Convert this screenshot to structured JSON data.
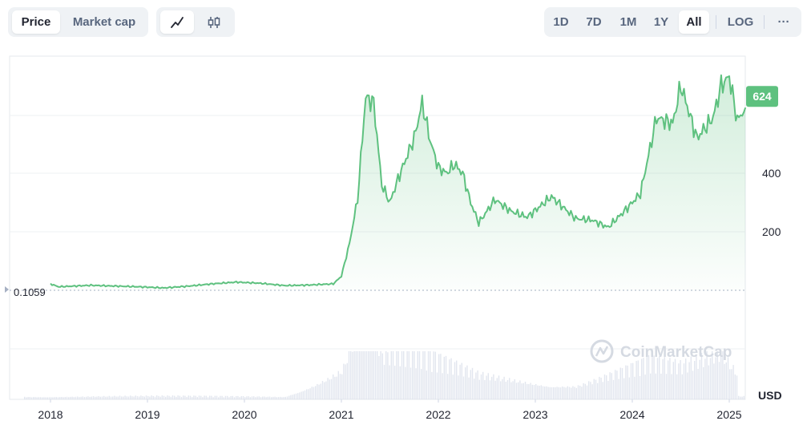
{
  "toolbar": {
    "metric_tabs": [
      {
        "label": "Price",
        "active": true
      },
      {
        "label": "Market cap",
        "active": false
      }
    ],
    "chart_style": [
      {
        "icon": "line-chart-icon",
        "active": true
      },
      {
        "icon": "candlestick-icon",
        "active": false
      }
    ],
    "ranges": [
      {
        "label": "1D",
        "active": false
      },
      {
        "label": "7D",
        "active": false
      },
      {
        "label": "1M",
        "active": false
      },
      {
        "label": "1Y",
        "active": false
      },
      {
        "label": "All",
        "active": true
      }
    ],
    "log_label": "LOG",
    "more_label": "···"
  },
  "watermark": "CoinMarketCap",
  "colors": {
    "line": "#5ec17f",
    "fill_top": "#5ec17f",
    "badge": "#5ec17f",
    "grid": "#eef0f3",
    "axis_text": "#222531",
    "volume": "#cfd6e4"
  },
  "chart_data": {
    "type": "line",
    "title": "",
    "xlabel": "",
    "ylabel": "USD",
    "currency_label": "USD",
    "x_ticks": [
      "2018",
      "2019",
      "2020",
      "2021",
      "2022",
      "2023",
      "2024",
      "2025"
    ],
    "y_ticks": [
      200,
      400
    ],
    "ylim": [
      0,
      800
    ],
    "grid": true,
    "start_marker": {
      "value": 0.1059,
      "label": "0.1059"
    },
    "current_price": {
      "value": 624,
      "label": "624"
    },
    "series": [
      {
        "values": [
          [
            "2018-01",
            22
          ],
          [
            "2018-02",
            12
          ],
          [
            "2018-06",
            17
          ],
          [
            "2018-12",
            12
          ],
          [
            "2019-03",
            8
          ],
          [
            "2019-06",
            14
          ],
          [
            "2019-09",
            22
          ],
          [
            "2019-12",
            28
          ],
          [
            "2020-03",
            24
          ],
          [
            "2020-06",
            16
          ],
          [
            "2020-09",
            18
          ],
          [
            "2020-12",
            22
          ],
          [
            "2021-01",
            48
          ],
          [
            "2021-02",
            160
          ],
          [
            "2021-03",
            310
          ],
          [
            "2021-04",
            660
          ],
          [
            "2021-05",
            640
          ],
          [
            "2021-06",
            360
          ],
          [
            "2021-07",
            300
          ],
          [
            "2021-08",
            380
          ],
          [
            "2021-09",
            450
          ],
          [
            "2021-10",
            520
          ],
          [
            "2021-11",
            640
          ],
          [
            "2021-12",
            510
          ],
          [
            "2022-01",
            420
          ],
          [
            "2022-02",
            400
          ],
          [
            "2022-03",
            430
          ],
          [
            "2022-04",
            400
          ],
          [
            "2022-05",
            300
          ],
          [
            "2022-06",
            230
          ],
          [
            "2022-07",
            270
          ],
          [
            "2022-08",
            310
          ],
          [
            "2022-10",
            270
          ],
          [
            "2022-12",
            250
          ],
          [
            "2023-03",
            320
          ],
          [
            "2023-06",
            245
          ],
          [
            "2023-08",
            240
          ],
          [
            "2023-10",
            215
          ],
          [
            "2023-12",
            270
          ],
          [
            "2024-02",
            330
          ],
          [
            "2024-04",
            590
          ],
          [
            "2024-06",
            570
          ],
          [
            "2024-07",
            700
          ],
          [
            "2024-09",
            520
          ],
          [
            "2024-11",
            590
          ],
          [
            "2024-12",
            700
          ],
          [
            "2025-01",
            730
          ],
          [
            "2025-02",
            580
          ],
          [
            "2025-03",
            624
          ]
        ]
      }
    ],
    "volume": {
      "description_free": true,
      "values": [
        [
          "2018-06",
          1
        ],
        [
          "2019-06",
          1
        ],
        [
          "2020-06",
          1
        ],
        [
          "2021-01",
          10
        ],
        [
          "2021-04",
          30
        ],
        [
          "2021-06",
          14
        ],
        [
          "2021-11",
          14
        ],
        [
          "2022-06",
          8
        ],
        [
          "2023-06",
          5
        ],
        [
          "2024-03",
          12
        ],
        [
          "2024-07",
          10
        ],
        [
          "2024-12",
          14
        ],
        [
          "2025-02",
          8
        ]
      ]
    }
  }
}
